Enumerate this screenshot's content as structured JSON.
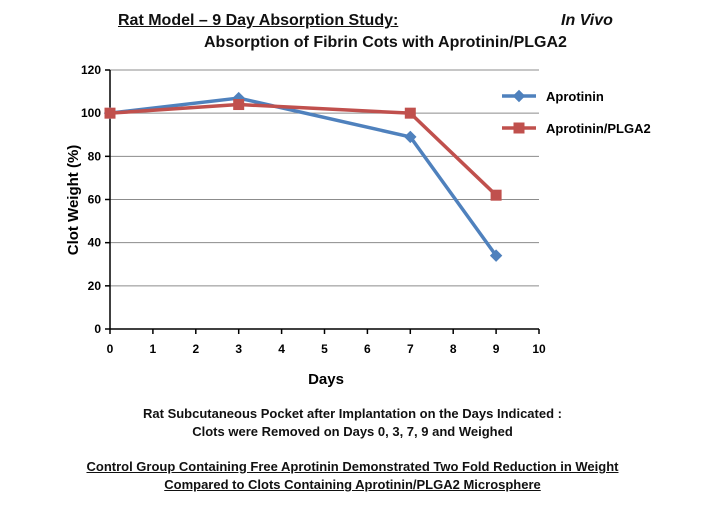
{
  "header": {
    "title": "Rat Model – 9 Day Absorption Study:",
    "subtitle": "Absorption of Fibrin Cots with Aprotinin/PLGA2",
    "tag": "In Vivo"
  },
  "captions": {
    "line1": "Rat Subcutaneous Pocket after Implantation on the Days Indicated :",
    "line2": "Clots were Removed on Days 0, 3, 7, 9 and Weighed"
  },
  "notes": {
    "line1": "Control Group Containing  Free Aprotinin  Demonstrated Two Fold Reduction in Weight",
    "line2": "Compared to Clots Containing  Aprotinin/PLGA2  Microsphere"
  },
  "chart_data": {
    "type": "line",
    "title": "Rat Model – 9 Day Absorption Study:",
    "subtitle": "Absorption of Fibrin Cots with Aprotinin/PLGA2",
    "xlabel": "Days",
    "ylabel": "Clot Weight (%)",
    "xlim": [
      0,
      10
    ],
    "ylim": [
      0,
      120
    ],
    "xticks": [
      0,
      1,
      2,
      3,
      4,
      5,
      6,
      7,
      8,
      9,
      10
    ],
    "yticks": [
      0,
      20,
      40,
      60,
      80,
      100,
      120
    ],
    "grid": "horizontal",
    "legend": "right",
    "series": [
      {
        "name": "Aprotinin",
        "color": "#4f81bd",
        "marker": "diamond",
        "x": [
          0,
          3,
          7,
          9
        ],
        "y": [
          100,
          107,
          89,
          34
        ]
      },
      {
        "name": "Aprotinin/PLGA2",
        "color": "#c0504d",
        "marker": "square",
        "x": [
          0,
          3,
          7,
          9
        ],
        "y": [
          100,
          104,
          100,
          62
        ]
      }
    ]
  }
}
